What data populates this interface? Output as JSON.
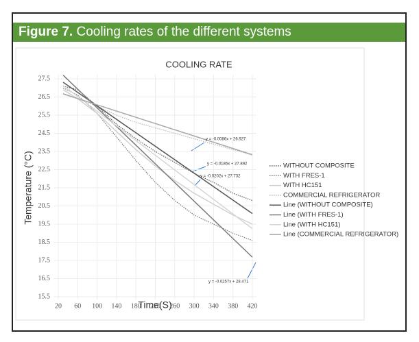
{
  "figure": {
    "label": "Figure 7.",
    "caption": "Cooling rates of the different systems"
  },
  "chart_data": {
    "type": "line",
    "title": "COOLING RATE",
    "x_label": "Time(S)",
    "y_label": "Temperature (°C)",
    "xlim": [
      20,
      420
    ],
    "xticks": [
      20,
      60,
      100,
      140,
      180,
      220,
      260,
      300,
      340,
      380,
      420
    ],
    "ylim": [
      15.5,
      27.5
    ],
    "yticks": [
      15.5,
      16.5,
      17.5,
      18.5,
      19.5,
      20.5,
      21.5,
      22.5,
      23.5,
      24.5,
      25.5,
      26.5,
      27.5
    ],
    "legend": "right",
    "series": [
      {
        "name": "WITHOUT COMPOSITE",
        "color": "#555555",
        "style": "dotted",
        "x": [
          30,
          60,
          100,
          140,
          180,
          220,
          260,
          300,
          340,
          380,
          420
        ],
        "values": [
          27.1,
          26.9,
          26.0,
          25.0,
          24.2,
          23.5,
          22.9,
          22.3,
          21.8,
          21.2,
          20.8
        ]
      },
      {
        "name": "WITH FRES-1",
        "color": "#777777",
        "style": "dotted",
        "x": [
          30,
          60,
          100,
          140,
          180,
          220,
          260,
          300,
          340,
          380,
          420
        ],
        "values": [
          27.0,
          26.6,
          25.6,
          24.3,
          23.0,
          21.8,
          20.8,
          20.0,
          19.5,
          19.0,
          18.6
        ]
      },
      {
        "name": "WITH HC151",
        "color": "#d0d0d0",
        "style": "solid",
        "x": [
          30,
          60,
          100,
          140,
          180,
          220,
          260,
          300,
          340,
          380,
          420
        ],
        "values": [
          26.9,
          26.4,
          25.6,
          24.6,
          23.6,
          22.7,
          21.9,
          21.2,
          20.6,
          20.0,
          19.5
        ]
      },
      {
        "name": "COMMERCIAL REFRIGERATOR",
        "color": "#b8b8b8",
        "style": "dotted",
        "x": [
          30,
          60,
          100,
          140,
          180,
          220,
          260,
          300,
          340,
          380,
          420
        ],
        "values": [
          26.7,
          26.4,
          26.0,
          25.5,
          25.1,
          24.8,
          24.5,
          24.2,
          23.9,
          23.6,
          23.3
        ]
      },
      {
        "name": "Line (WITHOUT COMPOSITE)",
        "color": "#555555",
        "style": "solid",
        "x": [
          30,
          420
        ],
        "values": [
          27.31,
          20.08
        ]
      },
      {
        "name": "Line (WITH FRES-1)",
        "color": "#7a7a7a",
        "style": "solid",
        "x": [
          30,
          420
        ],
        "values": [
          27.7,
          17.68
        ]
      },
      {
        "name": "Line (WITH HC151)",
        "color": "#d6d6d6",
        "style": "solid",
        "x": [
          30,
          420
        ],
        "values": [
          27.13,
          19.25
        ]
      },
      {
        "name": "Line (COMMERCIAL REFRIGERATOR)",
        "color": "#a8a8a8",
        "style": "solid",
        "x": [
          30,
          420
        ],
        "values": [
          26.67,
          23.32
        ]
      }
    ],
    "annotations": [
      "y = -0.0086x + 26.927",
      "y = -0.0186x + 27.892",
      "y = -0.0202x + 27.732",
      "y = -0.0257x + 28.471"
    ]
  }
}
